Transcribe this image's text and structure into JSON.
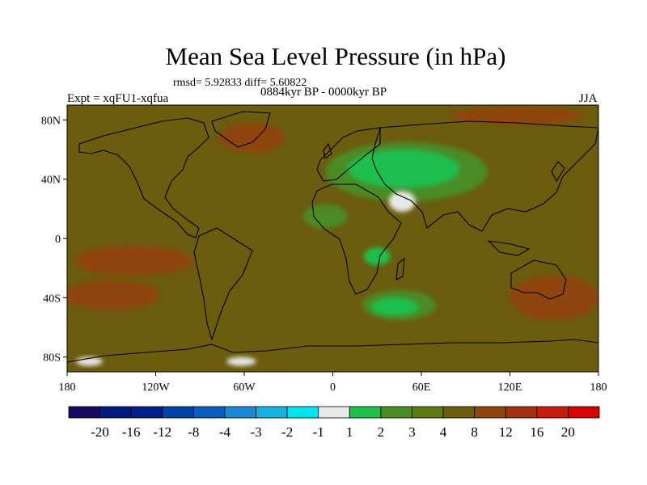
{
  "chart_data": {
    "type": "heatmap",
    "title": "Mean Sea Level Pressure (in hPa)",
    "stats_text": "rmsd= 5.92833 diff= 5.60822",
    "period": "0884kyr BP - 0000kyr BP",
    "experiment": "Expt = xqFU1-xqfua",
    "season": "JJA",
    "x_ticks": [
      "180",
      "120W",
      "60W",
      "0",
      "60E",
      "120E",
      "180"
    ],
    "x_tick_values": [
      -180,
      -120,
      -60,
      0,
      60,
      120,
      180
    ],
    "y_ticks": [
      "80N",
      "40N",
      "0",
      "40S",
      "80S"
    ],
    "y_tick_values": [
      80,
      40,
      0,
      -40,
      -80
    ],
    "xlim": [
      -180,
      180
    ],
    "ylim": [
      -90,
      90
    ],
    "colorbar_labels": [
      "-20",
      "-16",
      "-12",
      "-8",
      "-4",
      "-3",
      "-2",
      "-1",
      "1",
      "2",
      "3",
      "4",
      "8",
      "12",
      "16",
      "20"
    ],
    "colorbar_colors": [
      "#1a0a5e",
      "#001a80",
      "#00208f",
      "#0042a8",
      "#0a5cc0",
      "#1a8ad4",
      "#17b2e3",
      "#00e3f0",
      "#e8e8e8",
      "#1fbf4e",
      "#4b8b26",
      "#5e7a14",
      "#6b5c0e",
      "#8f4510",
      "#a3300e",
      "#c71b10",
      "#d90000"
    ],
    "background_level_color": "#6b5c0e",
    "regions": [
      {
        "name": "central-asia-low",
        "lon": 50,
        "lat": 45,
        "rx": 55,
        "ry": 20,
        "color": "#4b8b26"
      },
      {
        "name": "central-asia-core",
        "lon": 48,
        "lat": 47,
        "rx": 38,
        "ry": 13,
        "color": "#1fbf4e"
      },
      {
        "name": "arabia-core",
        "lon": 47,
        "lat": 25,
        "rx": 9,
        "ry": 7,
        "color": "#e8e8e8"
      },
      {
        "name": "east-africa",
        "lon": 30,
        "lat": -12,
        "rx": 9,
        "ry": 6,
        "color": "#1fbf4e"
      },
      {
        "name": "south-atlantic-indian",
        "lon": 45,
        "lat": -45,
        "rx": 25,
        "ry": 10,
        "color": "#4b8b26"
      },
      {
        "name": "south-atlantic-core",
        "lon": 42,
        "lat": -46,
        "rx": 16,
        "ry": 6,
        "color": "#1fbf4e"
      },
      {
        "name": "north-pacific-high",
        "lon": -135,
        "lat": -15,
        "rx": 40,
        "ry": 10,
        "color": "#8f4510"
      },
      {
        "name": "south-pacific-high",
        "lon": -150,
        "lat": -38,
        "rx": 32,
        "ry": 10,
        "color": "#8f4510"
      },
      {
        "name": "arctic-high",
        "lon": 125,
        "lat": 83,
        "rx": 45,
        "ry": 6,
        "color": "#8f4510"
      },
      {
        "name": "greenland-high",
        "lon": -55,
        "lat": 68,
        "rx": 22,
        "ry": 10,
        "color": "#8f4510"
      },
      {
        "name": "australia-high",
        "lon": 150,
        "lat": -40,
        "rx": 30,
        "ry": 15,
        "color": "#8f4510"
      },
      {
        "name": "west-africa-low",
        "lon": -5,
        "lat": 15,
        "rx": 15,
        "ry": 8,
        "color": "#4b8b26"
      },
      {
        "name": "antarctic-core-west",
        "lon": -165,
        "lat": -83,
        "rx": 9,
        "ry": 3,
        "color": "#e8e8e8"
      },
      {
        "name": "antarctic-core-peninsula",
        "lon": -62,
        "lat": -83,
        "rx": 10,
        "ry": 3,
        "color": "#e8e8e8"
      }
    ]
  }
}
